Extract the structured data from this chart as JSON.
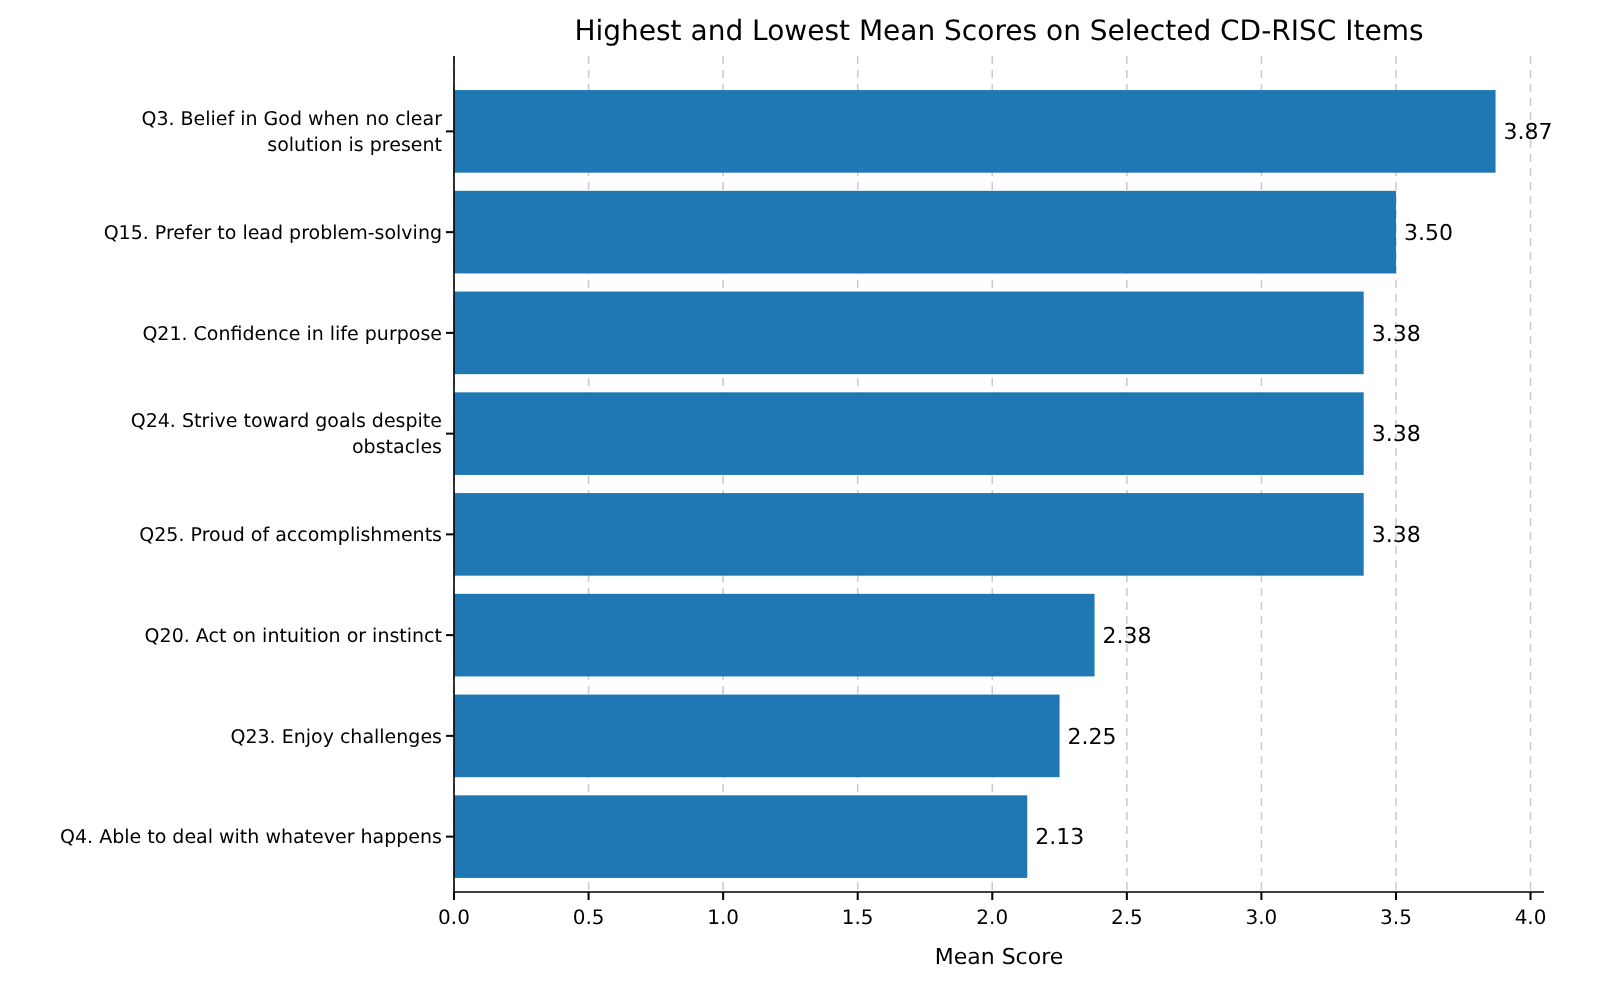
{
  "chart_data": {
    "type": "bar",
    "orientation": "horizontal",
    "title": "Highest and Lowest Mean Scores on Selected CD-RISC Items",
    "xlabel": "Mean Score",
    "categories": [
      "Q3. Belief in God when no clear solution is present",
      "Q15. Prefer to lead problem-solving",
      "Q21. Confidence in life purpose",
      "Q24. Strive toward goals despite obstacles",
      "Q25. Proud of accomplishments",
      "Q20. Act on intuition or instinct",
      "Q23. Enjoy challenges",
      "Q4. Able to deal with whatever happens"
    ],
    "values": [
      3.87,
      3.5,
      3.38,
      3.38,
      3.38,
      2.38,
      2.25,
      2.13
    ],
    "value_labels": [
      "3.87",
      "3.50",
      "3.38",
      "3.38",
      "3.38",
      "2.38",
      "2.25",
      "2.13"
    ],
    "color": "#1f77b4",
    "xlim": [
      0,
      4.05
    ],
    "xticks": [
      {
        "value": 0,
        "label": "0.0"
      },
      {
        "value": 0.5,
        "label": "0.5"
      },
      {
        "value": 1,
        "label": "1.0"
      },
      {
        "value": 1.5,
        "label": "1.5"
      },
      {
        "value": 2,
        "label": "2.0"
      },
      {
        "value": 2.5,
        "label": "2.5"
      },
      {
        "value": 3,
        "label": "3.0"
      },
      {
        "value": 3.5,
        "label": "3.5"
      },
      {
        "value": 4,
        "label": "4.0"
      }
    ],
    "grid": "x"
  }
}
